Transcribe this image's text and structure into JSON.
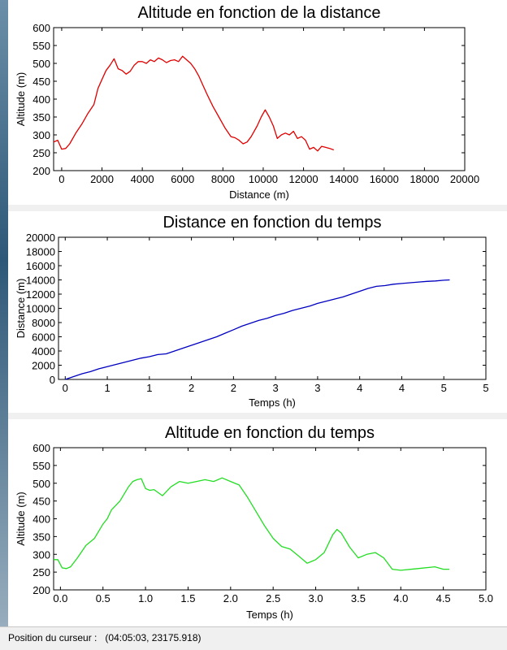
{
  "status_bar": {
    "label": "Position du curseur :",
    "value": "(04:05:03, 23175.918)"
  },
  "chart_data": [
    {
      "type": "line",
      "title": "Altitude en fonction de la distance",
      "xlabel": "Distance (m)",
      "ylabel": "Altitude (m)",
      "xlim": [
        -400,
        20000
      ],
      "ylim": [
        200,
        600
      ],
      "xticks": [
        0,
        2000,
        4000,
        6000,
        8000,
        10000,
        12000,
        14000,
        16000,
        18000,
        20000
      ],
      "yticks": [
        200,
        250,
        300,
        350,
        400,
        450,
        500,
        550,
        600
      ],
      "grid": false,
      "color": "#e00000",
      "x": [
        -400,
        -200,
        0,
        200,
        400,
        700,
        1000,
        1300,
        1600,
        1800,
        2000,
        2200,
        2400,
        2600,
        2800,
        3000,
        3200,
        3400,
        3600,
        3800,
        4000,
        4200,
        4400,
        4600,
        4800,
        5000,
        5200,
        5400,
        5600,
        5800,
        6000,
        6200,
        6400,
        6600,
        6800,
        7000,
        7200,
        7500,
        7800,
        8100,
        8400,
        8600,
        8800,
        9000,
        9200,
        9400,
        9700,
        9900,
        10100,
        10300,
        10500,
        10700,
        10900,
        11100,
        11300,
        11500,
        11700,
        11900,
        12100,
        12300,
        12500,
        12700,
        12900,
        13100,
        13300,
        13500
      ],
      "y": [
        280,
        285,
        260,
        262,
        275,
        305,
        330,
        360,
        385,
        430,
        455,
        480,
        495,
        513,
        485,
        480,
        470,
        478,
        495,
        505,
        505,
        500,
        510,
        505,
        515,
        510,
        502,
        508,
        510,
        505,
        520,
        510,
        500,
        485,
        465,
        440,
        415,
        380,
        350,
        320,
        295,
        292,
        285,
        275,
        280,
        295,
        325,
        350,
        370,
        350,
        325,
        290,
        300,
        305,
        300,
        310,
        290,
        295,
        285,
        260,
        265,
        255,
        268,
        265,
        262,
        258
      ]
    },
    {
      "type": "line",
      "title": "Distance en fonction du temps",
      "xlabel": "Temps (h)",
      "ylabel": "Distance (m)",
      "xlim": [
        -0.08,
        5.0
      ],
      "ylim": [
        0,
        20000
      ],
      "xticks": [
        0.0,
        0.5,
        1.0,
        1.5,
        2.0,
        2.5,
        3.0,
        3.5,
        4.0,
        4.5,
        5.0
      ],
      "yticks": [
        0,
        2000,
        4000,
        6000,
        8000,
        10000,
        12000,
        14000,
        16000,
        18000,
        20000
      ],
      "grid": false,
      "color": "#0000c0",
      "x": [
        0.0,
        0.1,
        0.2,
        0.3,
        0.4,
        0.5,
        0.6,
        0.7,
        0.8,
        0.9,
        1.0,
        1.1,
        1.2,
        1.3,
        1.4,
        1.5,
        1.6,
        1.7,
        1.8,
        1.9,
        2.0,
        2.1,
        2.2,
        2.3,
        2.4,
        2.5,
        2.6,
        2.7,
        2.8,
        2.9,
        3.0,
        3.1,
        3.2,
        3.3,
        3.4,
        3.5,
        3.6,
        3.7,
        3.8,
        3.9,
        4.0,
        4.1,
        4.2,
        4.3,
        4.4,
        4.5,
        4.57
      ],
      "y": [
        0,
        400,
        800,
        1100,
        1500,
        1800,
        2100,
        2400,
        2700,
        3000,
        3200,
        3500,
        3600,
        4000,
        4400,
        4800,
        5200,
        5600,
        6000,
        6500,
        7000,
        7500,
        7900,
        8300,
        8600,
        9000,
        9300,
        9700,
        10000,
        10300,
        10700,
        11000,
        11300,
        11600,
        12000,
        12400,
        12800,
        13100,
        13200,
        13400,
        13500,
        13600,
        13700,
        13800,
        13850,
        13950,
        14000
      ]
    },
    {
      "type": "line",
      "title": "Altitude en fonction du temps",
      "xlabel": "Temps (h)",
      "ylabel": "Altitude (m)",
      "xlim": [
        -0.08,
        5.0
      ],
      "ylim": [
        200,
        600
      ],
      "xticks": [
        0.0,
        0.5,
        1.0,
        1.5,
        2.0,
        2.5,
        3.0,
        3.5,
        4.0,
        4.5,
        5.0
      ],
      "yticks": [
        200,
        250,
        300,
        350,
        400,
        450,
        500,
        550,
        600
      ],
      "grid": false,
      "color": "#22dd22",
      "x": [
        -0.08,
        -0.03,
        0.02,
        0.07,
        0.12,
        0.2,
        0.3,
        0.4,
        0.5,
        0.55,
        0.6,
        0.7,
        0.8,
        0.85,
        0.9,
        0.95,
        1.0,
        1.05,
        1.1,
        1.2,
        1.3,
        1.4,
        1.5,
        1.6,
        1.7,
        1.8,
        1.9,
        2.0,
        2.1,
        2.2,
        2.3,
        2.4,
        2.5,
        2.6,
        2.7,
        2.8,
        2.9,
        3.0,
        3.1,
        3.2,
        3.25,
        3.3,
        3.4,
        3.5,
        3.6,
        3.7,
        3.8,
        3.9,
        4.0,
        4.2,
        4.4,
        4.5,
        4.57
      ],
      "y": [
        285,
        285,
        262,
        260,
        265,
        290,
        325,
        345,
        385,
        400,
        425,
        450,
        490,
        505,
        510,
        513,
        485,
        480,
        482,
        465,
        490,
        505,
        500,
        505,
        510,
        505,
        515,
        505,
        495,
        460,
        420,
        380,
        345,
        322,
        315,
        295,
        275,
        285,
        305,
        355,
        370,
        360,
        320,
        290,
        300,
        305,
        290,
        258,
        255,
        260,
        265,
        258,
        258
      ]
    }
  ]
}
